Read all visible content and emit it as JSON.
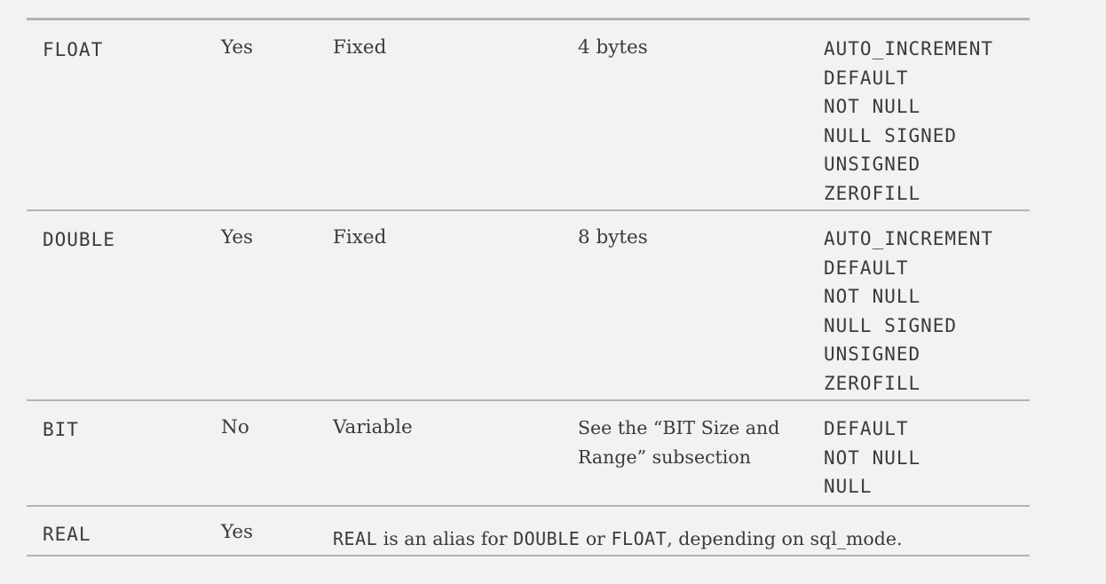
{
  "rows": [
    {
      "type": "FLOAT",
      "yes_no": "Yes",
      "fixed_variable": "Fixed",
      "size": "4 bytes",
      "options": [
        "AUTO_INCREMENT",
        "DEFAULT",
        "NOT NULL",
        "NULL SIGNED",
        "UNSIGNED",
        "ZEROFILL"
      ]
    },
    {
      "type": "DOUBLE",
      "yes_no": "Yes",
      "fixed_variable": "Fixed",
      "size": "8 bytes",
      "options": [
        "AUTO_INCREMENT",
        "DEFAULT",
        "NOT NULL",
        "NULL SIGNED",
        "UNSIGNED",
        "ZEROFILL"
      ]
    },
    {
      "type": "BIT",
      "yes_no": "No",
      "fixed_variable": "Variable",
      "size_lines": [
        "See the “BIT Size and",
        "Range” subsection"
      ],
      "options": [
        "DEFAULT",
        "NOT NULL",
        "NULL"
      ]
    },
    {
      "type": "REAL",
      "yes_no": "Yes",
      "note": {
        "code1": "REAL",
        "text1": " is an alias for ",
        "code2": "DOUBLE",
        "text2": " or ",
        "code3": "FLOAT",
        "text3": ", depending on sql_mode."
      }
    }
  ]
}
